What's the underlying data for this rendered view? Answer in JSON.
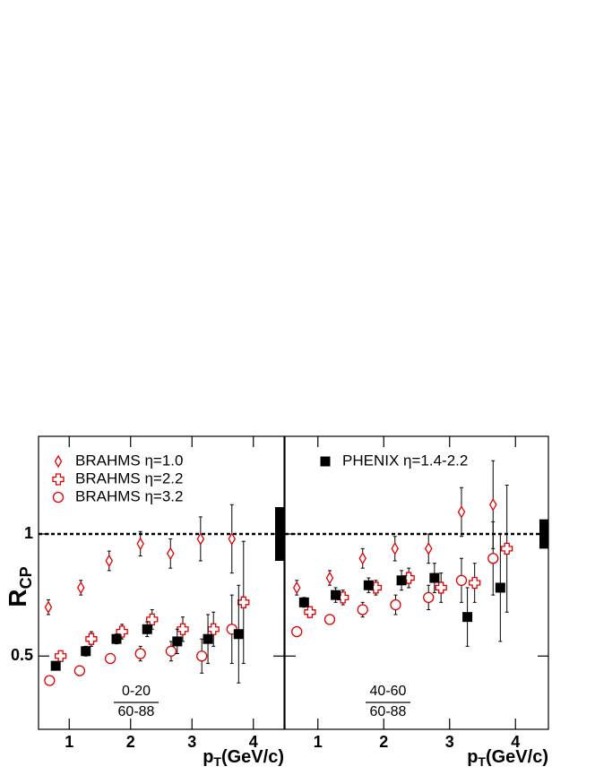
{
  "chart_data": [
    {
      "type": "scatter",
      "xlabel": {
        "main": "p",
        "sub": "T",
        "rest": "(GeV/c)"
      },
      "ylabel": {
        "main": "R",
        "sub": "CP"
      },
      "centrality": {
        "numerator": "0-20",
        "denominator": "60-88"
      },
      "xlim": [
        0.5,
        4.5
      ],
      "xticks": [
        1,
        2,
        3,
        4
      ],
      "ylim": [
        0.2,
        1.4
      ],
      "yticks": [
        0.5,
        1
      ],
      "ytick_labels": true,
      "reference_line": 1,
      "norm_uncertainty": 0.11,
      "legend_series": [
        0,
        1,
        2
      ],
      "series": [
        {
          "name": "BRAHMS η=1.0",
          "color": "#e00000",
          "marker": "diamond",
          "x": [
            0.66,
            1.19,
            1.65,
            2.16,
            2.65,
            3.14,
            3.65
          ],
          "values": [
            0.7,
            0.78,
            0.89,
            0.96,
            0.92,
            0.98,
            0.98
          ],
          "errors": [
            0.03,
            0.03,
            0.04,
            0.05,
            0.06,
            0.09,
            0.14
          ]
        },
        {
          "name": "BRAHMS η=2.2",
          "color": "#e00000",
          "marker": "cross",
          "x": [
            0.86,
            1.36,
            1.86,
            2.35,
            2.85,
            3.35,
            3.84
          ],
          "values": [
            0.5,
            0.57,
            0.6,
            0.65,
            0.61,
            0.61,
            0.72
          ],
          "errors": [
            0.02,
            0.03,
            0.03,
            0.04,
            0.05,
            0.07,
            0.25
          ]
        },
        {
          "name": "BRAHMS η=3.2",
          "color": "#e00000",
          "marker": "circle",
          "x": [
            0.68,
            1.17,
            1.67,
            2.16,
            2.66,
            3.16,
            3.65
          ],
          "values": [
            0.4,
            0.44,
            0.49,
            0.51,
            0.52,
            0.5,
            0.61
          ],
          "errors": [
            0.01,
            0.02,
            0.02,
            0.03,
            0.04,
            0.07,
            0.14
          ]
        },
        {
          "name": "PHENIX η=1.4-2.2",
          "color": "#000000",
          "marker": "square",
          "x": [
            0.78,
            1.27,
            1.77,
            2.27,
            2.76,
            3.26,
            3.76
          ],
          "values": [
            0.46,
            0.52,
            0.57,
            0.61,
            0.56,
            0.57,
            0.59
          ],
          "errors": [
            0.01,
            0.02,
            0.02,
            0.03,
            0.05,
            0.1,
            0.2
          ]
        }
      ]
    },
    {
      "type": "scatter",
      "xlabel": {
        "main": "p",
        "sub": "T",
        "rest": "(GeV/c)"
      },
      "centrality": {
        "numerator": "40-60",
        "denominator": "60-88"
      },
      "xlim": [
        0.5,
        4.5
      ],
      "xticks": [
        1,
        2,
        3,
        4
      ],
      "ylim": [
        0.2,
        1.4
      ],
      "yticks": [
        0.5,
        1
      ],
      "ytick_labels": false,
      "reference_line": 1,
      "norm_uncertainty": 0.06,
      "legend_series": [
        3
      ],
      "series": [
        {
          "name": "BRAHMS η=1.0",
          "color": "#e00000",
          "marker": "diamond",
          "x": [
            0.68,
            1.18,
            1.68,
            2.17,
            2.68,
            3.18,
            3.66
          ],
          "values": [
            0.78,
            0.82,
            0.9,
            0.94,
            0.94,
            1.09,
            1.12
          ],
          "errors": [
            0.03,
            0.03,
            0.04,
            0.05,
            0.06,
            0.1,
            0.18
          ]
        },
        {
          "name": "BRAHMS η=2.2",
          "color": "#e00000",
          "marker": "cross",
          "x": [
            0.88,
            1.38,
            1.88,
            2.38,
            2.87,
            3.38,
            3.87
          ],
          "values": [
            0.68,
            0.74,
            0.78,
            0.82,
            0.78,
            0.8,
            0.94
          ],
          "errors": [
            0.02,
            0.03,
            0.03,
            0.04,
            0.06,
            0.08,
            0.26
          ]
        },
        {
          "name": "BRAHMS η=3.2",
          "color": "#e00000",
          "marker": "circle",
          "x": [
            0.68,
            1.18,
            1.68,
            2.18,
            2.68,
            3.18,
            3.66
          ],
          "values": [
            0.6,
            0.65,
            0.69,
            0.71,
            0.74,
            0.81,
            0.9
          ],
          "errors": [
            0.02,
            0.02,
            0.03,
            0.04,
            0.05,
            0.09,
            0.15
          ]
        },
        {
          "name": "PHENIX η=1.4-2.2",
          "color": "#000000",
          "marker": "square",
          "x": [
            0.79,
            1.27,
            1.77,
            2.27,
            2.77,
            3.27,
            3.77
          ],
          "values": [
            0.72,
            0.75,
            0.79,
            0.81,
            0.82,
            0.66,
            0.78
          ],
          "errors": [
            0.02,
            0.03,
            0.03,
            0.04,
            0.06,
            0.12,
            0.22
          ]
        }
      ]
    }
  ]
}
